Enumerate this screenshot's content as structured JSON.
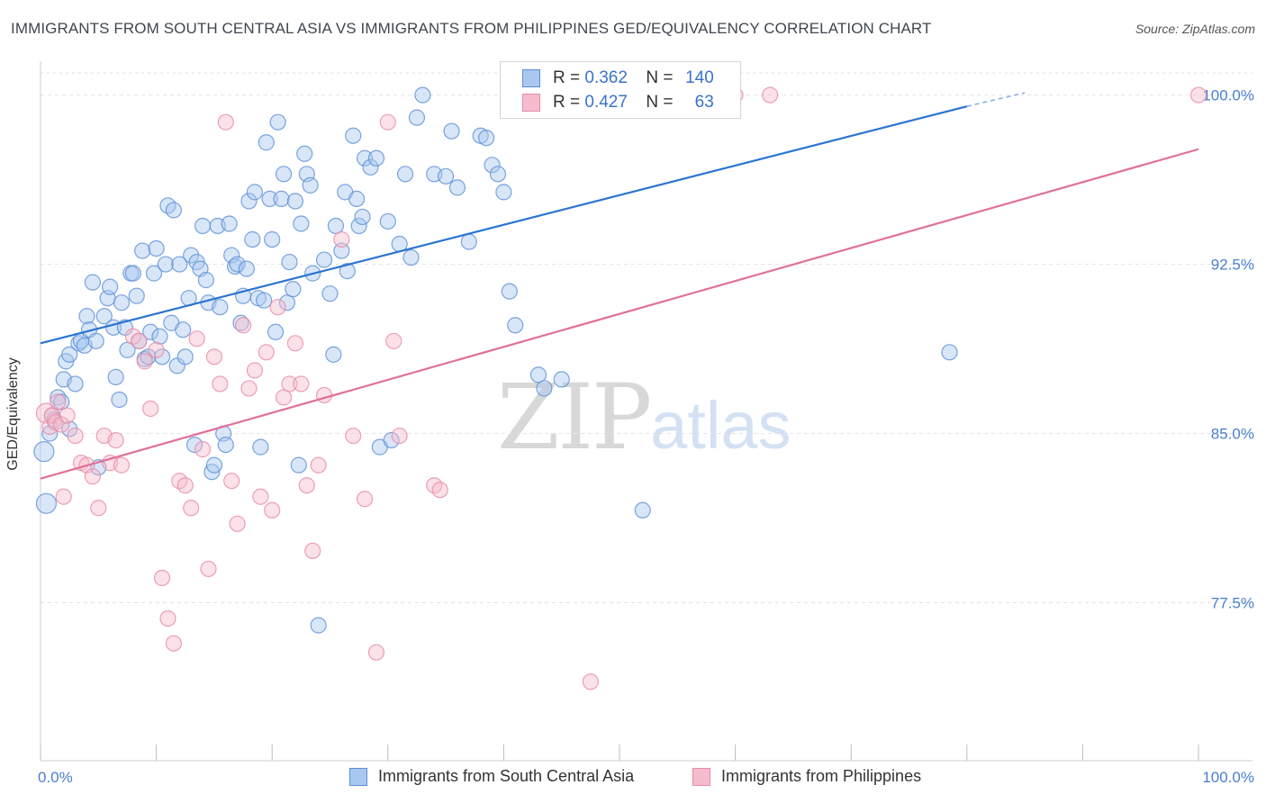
{
  "title": "IMMIGRANTS FROM SOUTH CENTRAL ASIA VS IMMIGRANTS FROM PHILIPPINES GED/EQUIVALENCY CORRELATION CHART",
  "source": "Source: ZipAtlas.com",
  "watermark": {
    "zip": "ZIP",
    "atlas": "atlas"
  },
  "legend": {
    "r_label": "R =",
    "n_label": "N =",
    "rows": [
      {
        "r": "0.362",
        "n": "140"
      },
      {
        "r": "0.427",
        "n": "63"
      }
    ]
  },
  "colors": {
    "blue_fill": "#a9c8ef",
    "blue_stroke": "#5b8fd6",
    "blue_line": "#2b74d0",
    "pink_fill": "#f6bccd",
    "pink_stroke": "#e78aa8",
    "pink_line": "#e0709a",
    "tick_text": "#4a7fd0",
    "grid": "#e2e2e2"
  },
  "chart_data": {
    "type": "scatter",
    "title": "IMMIGRANTS FROM SOUTH CENTRAL ASIA VS IMMIGRANTS FROM PHILIPPINES GED/EQUIVALENCY CORRELATION CHART",
    "xlabel": "",
    "ylabel": "GED/Equivalency",
    "xlim": [
      0,
      100
    ],
    "ylim": [
      70.5,
      101.5
    ],
    "y_ticks": [
      77.5,
      85.0,
      92.5,
      100.0
    ],
    "y_tick_labels": [
      "77.5%",
      "85.0%",
      "92.5%",
      "100.0%"
    ],
    "x_tick_labels": [
      "0.0%",
      "100.0%"
    ],
    "grid": true,
    "legend_position": "bottom",
    "series": [
      {
        "name": "Immigrants from South Central Asia",
        "trend": {
          "x0": 0,
          "y0": 89.0,
          "x1": 80,
          "y1": 99.5,
          "dash_to_x": 85,
          "dash_to_y": 100.1
        },
        "points": [
          [
            0.3,
            84.2
          ],
          [
            0.5,
            81.9
          ],
          [
            0.8,
            85.0
          ],
          [
            1.0,
            85.8
          ],
          [
            1.2,
            85.6
          ],
          [
            1.5,
            86.6
          ],
          [
            1.8,
            86.4
          ],
          [
            2.0,
            87.4
          ],
          [
            2.2,
            88.2
          ],
          [
            2.5,
            88.5
          ],
          [
            2.5,
            85.2
          ],
          [
            3.0,
            87.2
          ],
          [
            3.3,
            89.0
          ],
          [
            3.5,
            89.1
          ],
          [
            3.8,
            88.9
          ],
          [
            4.0,
            90.2
          ],
          [
            4.2,
            89.6
          ],
          [
            4.5,
            91.7
          ],
          [
            4.8,
            89.1
          ],
          [
            5.0,
            83.5
          ],
          [
            5.5,
            90.2
          ],
          [
            5.8,
            91.0
          ],
          [
            6.0,
            91.5
          ],
          [
            6.3,
            89.7
          ],
          [
            6.5,
            87.5
          ],
          [
            6.8,
            86.5
          ],
          [
            7.0,
            90.8
          ],
          [
            7.3,
            89.7
          ],
          [
            7.5,
            88.7
          ],
          [
            7.8,
            92.1
          ],
          [
            8.0,
            92.1
          ],
          [
            8.3,
            91.1
          ],
          [
            8.5,
            89.1
          ],
          [
            8.8,
            93.1
          ],
          [
            9.0,
            88.3
          ],
          [
            9.3,
            88.4
          ],
          [
            9.5,
            89.5
          ],
          [
            9.8,
            92.1
          ],
          [
            10.0,
            93.2
          ],
          [
            10.3,
            89.3
          ],
          [
            10.5,
            88.4
          ],
          [
            10.8,
            92.5
          ],
          [
            11.0,
            95.1
          ],
          [
            11.3,
            89.9
          ],
          [
            11.5,
            94.9
          ],
          [
            11.8,
            88.0
          ],
          [
            12.0,
            92.5
          ],
          [
            12.3,
            89.6
          ],
          [
            12.5,
            88.4
          ],
          [
            12.8,
            91.0
          ],
          [
            13.0,
            92.9
          ],
          [
            13.3,
            84.5
          ],
          [
            13.5,
            92.6
          ],
          [
            13.8,
            92.3
          ],
          [
            14.0,
            94.2
          ],
          [
            14.3,
            91.8
          ],
          [
            14.5,
            90.8
          ],
          [
            14.8,
            83.3
          ],
          [
            15.0,
            83.6
          ],
          [
            15.3,
            94.2
          ],
          [
            15.5,
            90.6
          ],
          [
            15.8,
            85.0
          ],
          [
            16.0,
            84.5
          ],
          [
            16.3,
            94.3
          ],
          [
            16.5,
            92.9
          ],
          [
            16.8,
            92.4
          ],
          [
            17.0,
            92.5
          ],
          [
            17.3,
            89.9
          ],
          [
            17.5,
            91.1
          ],
          [
            17.8,
            92.3
          ],
          [
            18.0,
            95.3
          ],
          [
            18.3,
            93.6
          ],
          [
            18.5,
            95.7
          ],
          [
            18.8,
            91.0
          ],
          [
            19.0,
            84.4
          ],
          [
            19.3,
            90.9
          ],
          [
            19.5,
            97.9
          ],
          [
            19.8,
            95.4
          ],
          [
            20.0,
            93.6
          ],
          [
            20.3,
            89.5
          ],
          [
            20.5,
            98.8
          ],
          [
            20.8,
            95.4
          ],
          [
            21.0,
            96.5
          ],
          [
            21.3,
            90.8
          ],
          [
            21.5,
            92.6
          ],
          [
            21.8,
            91.4
          ],
          [
            22.0,
            95.3
          ],
          [
            22.3,
            83.6
          ],
          [
            22.5,
            94.3
          ],
          [
            22.8,
            97.4
          ],
          [
            23.0,
            96.5
          ],
          [
            23.3,
            96.0
          ],
          [
            23.5,
            92.1
          ],
          [
            24.0,
            76.5
          ],
          [
            24.5,
            92.7
          ],
          [
            25.0,
            91.2
          ],
          [
            25.3,
            88.5
          ],
          [
            25.5,
            94.2
          ],
          [
            26.0,
            93.1
          ],
          [
            26.3,
            95.7
          ],
          [
            26.5,
            92.2
          ],
          [
            27.0,
            98.2
          ],
          [
            27.3,
            95.4
          ],
          [
            27.5,
            94.2
          ],
          [
            27.8,
            94.6
          ],
          [
            28.0,
            97.2
          ],
          [
            28.5,
            96.8
          ],
          [
            29.0,
            97.2
          ],
          [
            29.3,
            84.4
          ],
          [
            30.0,
            94.4
          ],
          [
            30.3,
            84.7
          ],
          [
            31.0,
            93.4
          ],
          [
            31.5,
            96.5
          ],
          [
            32.0,
            92.8
          ],
          [
            32.5,
            99.0
          ],
          [
            33.0,
            100.0
          ],
          [
            34.0,
            96.5
          ],
          [
            35.0,
            96.4
          ],
          [
            35.5,
            98.4
          ],
          [
            36.0,
            95.9
          ],
          [
            37.0,
            93.5
          ],
          [
            38.0,
            98.2
          ],
          [
            38.5,
            98.1
          ],
          [
            39.0,
            96.9
          ],
          [
            39.5,
            96.5
          ],
          [
            40.0,
            95.7
          ],
          [
            40.5,
            91.3
          ],
          [
            41.0,
            89.8
          ],
          [
            43.0,
            87.6
          ],
          [
            43.5,
            87.0
          ],
          [
            45.0,
            87.4
          ],
          [
            52.0,
            81.6
          ],
          [
            78.5,
            88.6
          ]
        ]
      },
      {
        "name": "Immigrants from Philippines",
        "trend": {
          "x0": 0,
          "y0": 83.0,
          "x1": 100,
          "y1": 97.6
        },
        "points": [
          [
            0.5,
            85.9
          ],
          [
            0.8,
            85.3
          ],
          [
            1.0,
            85.8
          ],
          [
            1.3,
            85.5
          ],
          [
            1.5,
            86.4
          ],
          [
            1.8,
            85.4
          ],
          [
            2.0,
            82.2
          ],
          [
            2.3,
            85.8
          ],
          [
            3.0,
            84.9
          ],
          [
            3.5,
            83.7
          ],
          [
            4.0,
            83.6
          ],
          [
            4.5,
            83.1
          ],
          [
            5.0,
            81.7
          ],
          [
            5.5,
            84.9
          ],
          [
            6.0,
            83.7
          ],
          [
            6.5,
            84.7
          ],
          [
            7.0,
            83.6
          ],
          [
            8.0,
            89.3
          ],
          [
            8.5,
            89.1
          ],
          [
            9.0,
            88.2
          ],
          [
            9.5,
            86.1
          ],
          [
            10.0,
            88.7
          ],
          [
            10.5,
            78.6
          ],
          [
            11.0,
            76.8
          ],
          [
            11.5,
            75.7
          ],
          [
            12.0,
            82.9
          ],
          [
            12.5,
            82.7
          ],
          [
            13.0,
            81.7
          ],
          [
            13.5,
            89.2
          ],
          [
            14.0,
            84.3
          ],
          [
            14.5,
            79.0
          ],
          [
            15.0,
            88.4
          ],
          [
            15.5,
            87.2
          ],
          [
            16.0,
            98.8
          ],
          [
            16.5,
            82.9
          ],
          [
            17.0,
            81.0
          ],
          [
            17.5,
            89.8
          ],
          [
            18.0,
            87.0
          ],
          [
            18.5,
            87.8
          ],
          [
            19.0,
            82.2
          ],
          [
            19.5,
            88.6
          ],
          [
            20.0,
            81.6
          ],
          [
            20.5,
            90.6
          ],
          [
            21.0,
            86.6
          ],
          [
            21.5,
            87.2
          ],
          [
            22.0,
            89.0
          ],
          [
            22.5,
            87.2
          ],
          [
            23.0,
            82.7
          ],
          [
            23.5,
            79.8
          ],
          [
            24.0,
            83.6
          ],
          [
            24.5,
            86.7
          ],
          [
            26.0,
            93.6
          ],
          [
            27.0,
            84.9
          ],
          [
            28.0,
            82.1
          ],
          [
            29.0,
            75.3
          ],
          [
            30.0,
            98.8
          ],
          [
            30.5,
            89.1
          ],
          [
            31.0,
            84.9
          ],
          [
            34.0,
            82.7
          ],
          [
            34.5,
            82.5
          ],
          [
            47.5,
            74.0
          ],
          [
            60.0,
            100.0
          ],
          [
            63.0,
            100.0
          ],
          [
            100.0,
            100.0
          ]
        ]
      }
    ]
  },
  "bottom_legend": [
    "Immigrants from South Central Asia",
    "Immigrants from Philippines"
  ],
  "axis": {
    "y_title": "GED/Equivalency",
    "y_ticks": [
      "77.5%",
      "85.0%",
      "92.5%",
      "100.0%"
    ],
    "x_left": "0.0%",
    "x_right": "100.0%"
  }
}
